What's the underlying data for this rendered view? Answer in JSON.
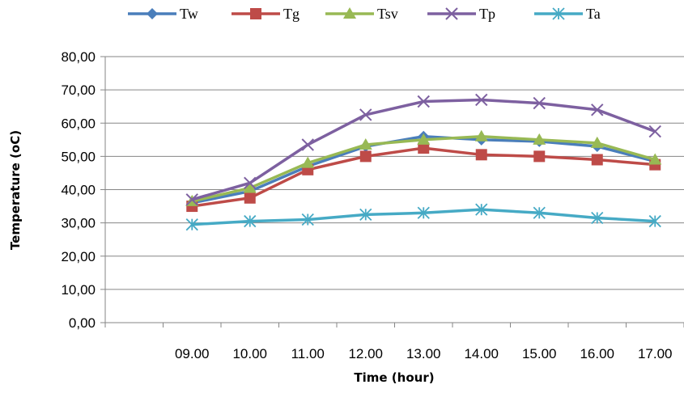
{
  "chart_data": {
    "type": "line",
    "title": "",
    "xlabel": "Time (hour)",
    "ylabel": "Temperature (oC)",
    "categories": [
      "09.00",
      "10.00",
      "11.00",
      "12.00",
      "13.00",
      "14.00",
      "15.00",
      "16.00",
      "17.00"
    ],
    "ylim": [
      0,
      80
    ],
    "yticks": [
      "0,00",
      "10,00",
      "20,00",
      "30,00",
      "40,00",
      "50,00",
      "60,00",
      "70,00",
      "80,00"
    ],
    "grid": true,
    "legend": "top",
    "series": [
      {
        "name": "Tw",
        "color": "#4a7ebb",
        "marker": "diamond",
        "values": [
          36,
          39.5,
          47,
          53,
          56,
          55,
          54.5,
          53,
          48.5
        ]
      },
      {
        "name": "Tg",
        "color": "#be4b48",
        "marker": "square",
        "values": [
          35,
          37.5,
          46,
          50,
          52.5,
          50.5,
          50,
          49,
          47.5
        ]
      },
      {
        "name": "Tsv",
        "color": "#98b954",
        "marker": "triangle",
        "values": [
          36.5,
          40.5,
          48,
          53.5,
          55,
          56,
          55,
          54,
          49
        ]
      },
      {
        "name": "Tp",
        "color": "#7d60a0",
        "marker": "x",
        "values": [
          37,
          42,
          53.5,
          62.5,
          66.5,
          67,
          66,
          64,
          57.5
        ]
      },
      {
        "name": "Ta",
        "color": "#46aac5",
        "marker": "star",
        "values": [
          29.5,
          30.5,
          31,
          32.5,
          33,
          34,
          33,
          31.5,
          30.5
        ]
      }
    ]
  }
}
